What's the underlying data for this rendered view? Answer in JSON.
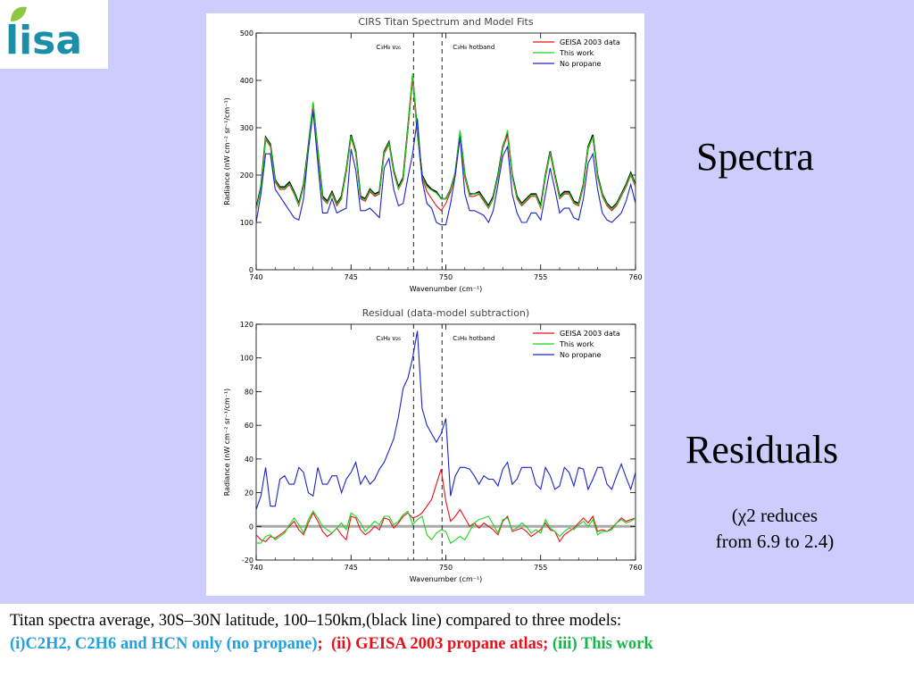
{
  "logo": {
    "text": "lisa",
    "color": "#1a8fa8",
    "leaf_color": "#8dc63f"
  },
  "side_labels": {
    "spectra": "Spectra",
    "residuals": "Residuals",
    "chi_note_line1": "(χ2 reduces",
    "chi_note_line2": "from 6.9 to 2.4)"
  },
  "caption": {
    "line1": "Titan spectra average, 30S–30N latitude, 100–150km,(black line) compared to three models:",
    "part_i": "(i)C2H2, C2H6 and HCN only (no propane)",
    "sep1": ";  ",
    "part_ii": "(ii) GEISA 2003 propane atlas;",
    "sep2": " ",
    "part_iii_prefix": "(iii)",
    "part_iii": " This work",
    "colors": {
      "blue": "#22a0df",
      "red": "#e8111b",
      "green": "#16b54a"
    }
  },
  "chart_data": [
    {
      "type": "line",
      "title": "CIRS Titan Spectrum and Model Fits",
      "xlabel": "Wavenumber (cm⁻¹)",
      "ylabel": "Radiance (nW cm⁻² sr⁻¹/cm⁻¹)",
      "xlim": [
        740,
        760
      ],
      "ylim": [
        0,
        500
      ],
      "xticks": [
        740,
        745,
        750,
        755,
        760
      ],
      "yticks": [
        0,
        100,
        200,
        300,
        400,
        500
      ],
      "annotations": [
        {
          "text": "C₃H₈ ν₂₆",
          "x": 748.3
        },
        {
          "text": "C₃H₈ hotband",
          "x": 749.8
        }
      ],
      "legend_position": "top-right",
      "x": [
        740.0,
        740.25,
        740.5,
        740.75,
        741.0,
        741.25,
        741.5,
        741.75,
        742.0,
        742.25,
        742.5,
        742.75,
        743.0,
        743.25,
        743.5,
        743.75,
        744.0,
        744.25,
        744.5,
        744.75,
        745.0,
        745.25,
        745.5,
        745.75,
        746.0,
        746.25,
        746.5,
        746.75,
        747.0,
        747.25,
        747.5,
        747.75,
        748.0,
        748.25,
        748.5,
        748.75,
        749.0,
        749.25,
        749.5,
        749.75,
        750.0,
        750.25,
        750.5,
        750.75,
        751.0,
        751.25,
        751.5,
        751.75,
        752.0,
        752.25,
        752.5,
        752.75,
        753.0,
        753.25,
        753.5,
        753.75,
        754.0,
        754.25,
        754.5,
        754.75,
        755.0,
        755.25,
        755.5,
        755.75,
        756.0,
        756.25,
        756.5,
        756.75,
        757.0,
        757.25,
        757.5,
        757.75,
        758.0,
        758.25,
        758.5,
        758.75,
        759.0,
        759.25,
        759.5,
        759.75,
        760.0
      ],
      "series": [
        {
          "name": "",
          "color": "#000000",
          "values": [
            130,
            175,
            280,
            265,
            190,
            175,
            175,
            185,
            165,
            140,
            180,
            260,
            350,
            250,
            155,
            145,
            165,
            140,
            155,
            210,
            285,
            250,
            155,
            150,
            170,
            160,
            165,
            250,
            270,
            210,
            175,
            195,
            300,
            410,
            290,
            200,
            180,
            170,
            165,
            150,
            150,
            170,
            205,
            290,
            200,
            160,
            160,
            165,
            150,
            135,
            155,
            200,
            260,
            290,
            200,
            155,
            140,
            150,
            160,
            160,
            135,
            200,
            250,
            200,
            155,
            165,
            165,
            145,
            140,
            180,
            260,
            285,
            200,
            160,
            140,
            130,
            140,
            160,
            180,
            205,
            180
          ]
        },
        {
          "name": "GEISA 2003 data",
          "color": "#e8111b",
          "values": [
            125,
            170,
            275,
            260,
            185,
            170,
            170,
            180,
            160,
            135,
            175,
            255,
            345,
            245,
            150,
            140,
            160,
            135,
            150,
            205,
            280,
            245,
            150,
            145,
            165,
            155,
            160,
            245,
            265,
            205,
            170,
            190,
            295,
            405,
            285,
            195,
            165,
            150,
            135,
            125,
            140,
            165,
            200,
            285,
            195,
            155,
            155,
            160,
            145,
            130,
            150,
            195,
            255,
            285,
            195,
            150,
            135,
            145,
            155,
            155,
            130,
            195,
            245,
            195,
            150,
            160,
            160,
            140,
            135,
            175,
            255,
            280,
            195,
            155,
            135,
            125,
            135,
            155,
            175,
            200,
            175
          ]
        },
        {
          "name": "This work",
          "color": "#18d81e",
          "values": [
            128,
            172,
            278,
            262,
            188,
            172,
            172,
            182,
            162,
            138,
            178,
            258,
            355,
            248,
            152,
            142,
            162,
            138,
            152,
            208,
            282,
            248,
            152,
            148,
            168,
            158,
            162,
            248,
            268,
            208,
            172,
            192,
            298,
            415,
            288,
            198,
            175,
            168,
            162,
            150,
            150,
            170,
            205,
            295,
            200,
            158,
            160,
            162,
            148,
            132,
            152,
            198,
            258,
            295,
            198,
            152,
            138,
            148,
            158,
            158,
            132,
            198,
            248,
            198,
            152,
            162,
            162,
            142,
            138,
            178,
            258,
            280,
            198,
            158,
            138,
            128,
            138,
            158,
            178,
            202,
            178
          ]
        },
        {
          "name": "No propane",
          "color": "#1d23c4",
          "values": [
            100,
            160,
            245,
            245,
            170,
            155,
            140,
            125,
            110,
            105,
            150,
            250,
            335,
            225,
            120,
            120,
            150,
            120,
            125,
            130,
            255,
            210,
            125,
            125,
            130,
            120,
            110,
            215,
            235,
            170,
            135,
            140,
            195,
            245,
            320,
            190,
            140,
            130,
            100,
            95,
            95,
            140,
            200,
            280,
            160,
            125,
            125,
            120,
            115,
            100,
            125,
            180,
            240,
            260,
            160,
            120,
            100,
            100,
            120,
            120,
            105,
            160,
            215,
            170,
            120,
            130,
            130,
            110,
            105,
            150,
            225,
            245,
            170,
            120,
            105,
            100,
            110,
            120,
            145,
            180,
            140
          ]
        }
      ]
    },
    {
      "type": "line",
      "title": "Residual (data-model subtraction)",
      "xlabel": "Wavenumber (cm⁻¹)",
      "ylabel": "Radiance (nW cm⁻² sr⁻¹/cm⁻¹)",
      "xlim": [
        740,
        760
      ],
      "ylim": [
        -20,
        120
      ],
      "xticks": [
        740,
        745,
        750,
        755,
        760
      ],
      "yticks": [
        -20,
        0,
        20,
        40,
        60,
        80,
        100,
        120
      ],
      "zero_line": 0,
      "annotations": [
        {
          "text": "C₃H₈ ν₂₆",
          "x": 748.3
        },
        {
          "text": "C₃H₈ hotband",
          "x": 749.8
        }
      ],
      "legend_position": "top-right",
      "x": [
        740.0,
        740.25,
        740.5,
        740.75,
        741.0,
        741.25,
        741.5,
        741.75,
        742.0,
        742.25,
        742.5,
        742.75,
        743.0,
        743.25,
        743.5,
        743.75,
        744.0,
        744.25,
        744.5,
        744.75,
        745.0,
        745.25,
        745.5,
        745.75,
        746.0,
        746.25,
        746.5,
        746.75,
        747.0,
        747.25,
        747.5,
        747.75,
        748.0,
        748.25,
        748.5,
        748.75,
        749.0,
        749.25,
        749.5,
        749.75,
        750.0,
        750.25,
        750.5,
        750.75,
        751.0,
        751.25,
        751.5,
        751.75,
        752.0,
        752.25,
        752.5,
        752.75,
        753.0,
        753.25,
        753.5,
        753.75,
        754.0,
        754.25,
        754.5,
        754.75,
        755.0,
        755.25,
        755.5,
        755.75,
        756.0,
        756.25,
        756.5,
        756.75,
        757.0,
        757.25,
        757.5,
        757.75,
        758.0,
        758.25,
        758.5,
        758.75,
        759.0,
        759.25,
        759.5,
        759.75,
        760.0
      ],
      "series": [
        {
          "name": "GEISA 2003 data",
          "color": "#e8111b",
          "values": [
            -5,
            -8,
            -9,
            -6,
            -7,
            -5,
            -3,
            0,
            3,
            -2,
            -5,
            2,
            8,
            3,
            -3,
            -6,
            -4,
            -1,
            -5,
            -8,
            6,
            5,
            -2,
            -5,
            -3,
            0,
            -2,
            5,
            4,
            -1,
            2,
            6,
            8,
            5,
            6,
            8,
            12,
            16,
            25,
            34,
            15,
            3,
            6,
            10,
            5,
            0,
            2,
            -1,
            2,
            0,
            -2,
            -5,
            3,
            6,
            -3,
            -2,
            -1,
            -3,
            -6,
            -4,
            -2,
            2,
            -2,
            -3,
            -9,
            -5,
            -3,
            -1,
            2,
            5,
            2,
            6,
            -3,
            -2,
            -3,
            -1,
            2,
            5,
            3,
            4,
            5
          ]
        },
        {
          "name": "This work",
          "color": "#18d81e",
          "values": [
            -10,
            -10,
            -6,
            -5,
            -8,
            -6,
            -4,
            1,
            5,
            1,
            -4,
            4,
            9,
            5,
            0,
            -2,
            -4,
            -1,
            2,
            -2,
            8,
            6,
            2,
            -3,
            0,
            3,
            1,
            6,
            6,
            1,
            3,
            7,
            9,
            1,
            4,
            6,
            -5,
            -8,
            -4,
            -2,
            -3,
            -10,
            -8,
            -6,
            -8,
            -3,
            2,
            4,
            5,
            6,
            1,
            -4,
            4,
            5,
            -2,
            -1,
            2,
            0,
            -4,
            -2,
            -4,
            4,
            -1,
            -3,
            -6,
            -3,
            -1,
            -2,
            1,
            3,
            0,
            4,
            -5,
            -3,
            -3,
            -2,
            2,
            4,
            2,
            3,
            5
          ]
        },
        {
          "name": "No propane",
          "color": "#1d23c4",
          "values": [
            10,
            18,
            35,
            12,
            12,
            28,
            30,
            25,
            25,
            35,
            32,
            20,
            18,
            35,
            25,
            25,
            30,
            30,
            20,
            28,
            32,
            38,
            25,
            30,
            25,
            28,
            34,
            38,
            45,
            52,
            65,
            82,
            88,
            100,
            116,
            70,
            60,
            55,
            50,
            55,
            64,
            18,
            30,
            35,
            35,
            34,
            30,
            25,
            30,
            28,
            28,
            24,
            34,
            38,
            25,
            28,
            35,
            35,
            35,
            25,
            22,
            35,
            30,
            22,
            24,
            35,
            32,
            24,
            35,
            34,
            22,
            28,
            35,
            35,
            25,
            22,
            30,
            37,
            29,
            22,
            32
          ]
        }
      ]
    }
  ]
}
